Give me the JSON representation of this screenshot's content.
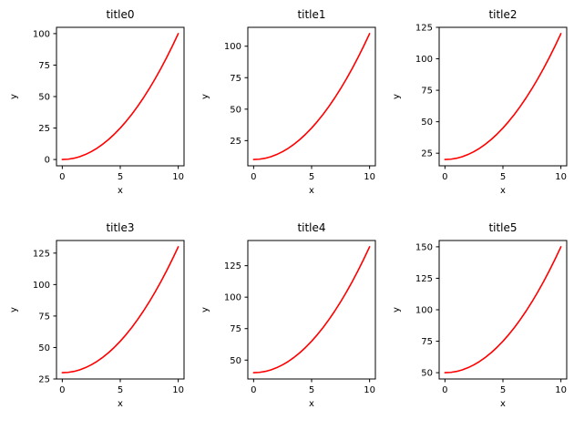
{
  "figure": {
    "background": "#ffffff",
    "rows": 2,
    "cols": 3
  },
  "chart_data": [
    {
      "type": "line",
      "title": "title0",
      "xlabel": "x",
      "ylabel": "y",
      "line_color": "#ff0000",
      "x": [
        0,
        0.5,
        1,
        1.5,
        2,
        2.5,
        3,
        3.5,
        4,
        4.5,
        5,
        5.5,
        6,
        6.5,
        7,
        7.5,
        8,
        8.5,
        9,
        9.5,
        10
      ],
      "y": [
        0,
        0.25,
        1,
        2.25,
        4,
        6.25,
        9,
        12.25,
        16,
        20.25,
        25,
        30.25,
        36,
        42.25,
        49,
        56.25,
        64,
        72.25,
        81,
        90.25,
        100
      ],
      "xlim": [
        -0.5,
        10.5
      ],
      "ylim": [
        -5,
        105
      ],
      "xticks": [
        0,
        5,
        10
      ],
      "yticks": [
        0,
        25,
        50,
        75,
        100
      ]
    },
    {
      "type": "line",
      "title": "title1",
      "xlabel": "x",
      "ylabel": "y",
      "line_color": "#ff0000",
      "x": [
        0,
        0.5,
        1,
        1.5,
        2,
        2.5,
        3,
        3.5,
        4,
        4.5,
        5,
        5.5,
        6,
        6.5,
        7,
        7.5,
        8,
        8.5,
        9,
        9.5,
        10
      ],
      "y": [
        10,
        10.25,
        11,
        12.25,
        14,
        16.25,
        19,
        22.25,
        26,
        30.25,
        35,
        40.25,
        46,
        52.25,
        59,
        66.25,
        74,
        82.25,
        91,
        100.25,
        110
      ],
      "xlim": [
        -0.5,
        10.5
      ],
      "ylim": [
        5,
        115
      ],
      "xticks": [
        0,
        5,
        10
      ],
      "yticks": [
        25,
        50,
        75,
        100
      ]
    },
    {
      "type": "line",
      "title": "title2",
      "xlabel": "x",
      "ylabel": "y",
      "line_color": "#ff0000",
      "x": [
        0,
        0.5,
        1,
        1.5,
        2,
        2.5,
        3,
        3.5,
        4,
        4.5,
        5,
        5.5,
        6,
        6.5,
        7,
        7.5,
        8,
        8.5,
        9,
        9.5,
        10
      ],
      "y": [
        20,
        20.25,
        21,
        22.25,
        24,
        26.25,
        29,
        32.25,
        36,
        40.25,
        45,
        50.25,
        56,
        62.25,
        69,
        76.25,
        84,
        92.25,
        101,
        110.25,
        120
      ],
      "xlim": [
        -0.5,
        10.5
      ],
      "ylim": [
        15,
        125
      ],
      "xticks": [
        0,
        5,
        10
      ],
      "yticks": [
        25,
        50,
        75,
        100,
        125
      ]
    },
    {
      "type": "line",
      "title": "title3",
      "xlabel": "x",
      "ylabel": "y",
      "line_color": "#ff0000",
      "x": [
        0,
        0.5,
        1,
        1.5,
        2,
        2.5,
        3,
        3.5,
        4,
        4.5,
        5,
        5.5,
        6,
        6.5,
        7,
        7.5,
        8,
        8.5,
        9,
        9.5,
        10
      ],
      "y": [
        30,
        30.25,
        31,
        32.25,
        34,
        36.25,
        39,
        42.25,
        46,
        50.25,
        55,
        60.25,
        66,
        72.25,
        79,
        86.25,
        94,
        102.25,
        111,
        120.25,
        130
      ],
      "xlim": [
        -0.5,
        10.5
      ],
      "ylim": [
        25,
        135
      ],
      "xticks": [
        0,
        5,
        10
      ],
      "yticks": [
        25,
        50,
        75,
        100,
        125
      ]
    },
    {
      "type": "line",
      "title": "title4",
      "xlabel": "x",
      "ylabel": "y",
      "line_color": "#ff0000",
      "x": [
        0,
        0.5,
        1,
        1.5,
        2,
        2.5,
        3,
        3.5,
        4,
        4.5,
        5,
        5.5,
        6,
        6.5,
        7,
        7.5,
        8,
        8.5,
        9,
        9.5,
        10
      ],
      "y": [
        40,
        40.25,
        41,
        42.25,
        44,
        46.25,
        49,
        52.25,
        56,
        60.25,
        65,
        70.25,
        76,
        82.25,
        89,
        96.25,
        104,
        112.25,
        121,
        130.25,
        140
      ],
      "xlim": [
        -0.5,
        10.5
      ],
      "ylim": [
        35,
        145
      ],
      "xticks": [
        0,
        5,
        10
      ],
      "yticks": [
        50,
        75,
        100,
        125
      ]
    },
    {
      "type": "line",
      "title": "title5",
      "xlabel": "x",
      "ylabel": "y",
      "line_color": "#ff0000",
      "x": [
        0,
        0.5,
        1,
        1.5,
        2,
        2.5,
        3,
        3.5,
        4,
        4.5,
        5,
        5.5,
        6,
        6.5,
        7,
        7.5,
        8,
        8.5,
        9,
        9.5,
        10
      ],
      "y": [
        50,
        50.25,
        51,
        52.25,
        54,
        56.25,
        59,
        62.25,
        66,
        70.25,
        75,
        80.25,
        86,
        92.25,
        99,
        106.25,
        114,
        122.25,
        131,
        140.25,
        150
      ],
      "xlim": [
        -0.5,
        10.5
      ],
      "ylim": [
        45,
        155
      ],
      "xticks": [
        0,
        5,
        10
      ],
      "yticks": [
        50,
        75,
        100,
        125,
        150
      ]
    }
  ]
}
